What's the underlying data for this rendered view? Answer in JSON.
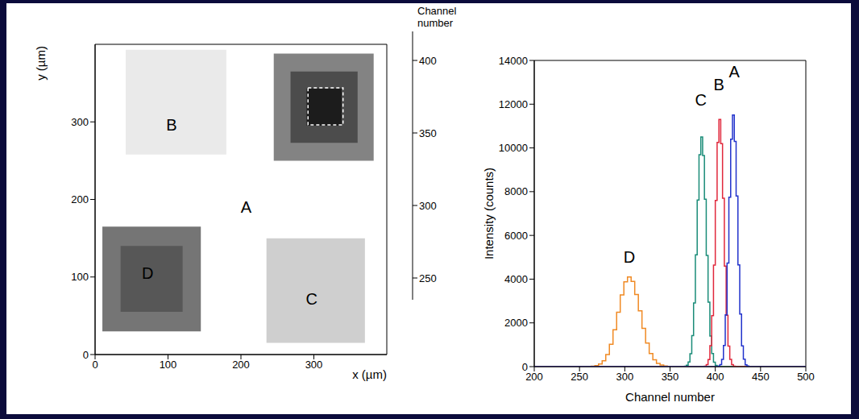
{
  "chart_data": [
    {
      "type": "heatmap",
      "xlabel": "x (µm)",
      "ylabel": "y (µm)",
      "xlim": [
        0,
        400
      ],
      "ylim": [
        0,
        400
      ],
      "xticks": [
        0,
        100,
        200,
        300
      ],
      "yticks": [
        0,
        100,
        200,
        300
      ],
      "cells": [
        {
          "x": [
            0,
            400
          ],
          "y": [
            0,
            400
          ],
          "value": 420
        },
        {
          "x": [
            42,
            180
          ],
          "y": [
            258,
            393
          ],
          "value": 405
        },
        {
          "x": [
            245,
            382
          ],
          "y": [
            250,
            388
          ],
          "value": 330
        },
        {
          "x": [
            268,
            360
          ],
          "y": [
            273,
            365
          ],
          "value": 290
        },
        {
          "x": [
            290,
            338
          ],
          "y": [
            295,
            343
          ],
          "value": 255
        },
        {
          "x": [
            10,
            145
          ],
          "y": [
            30,
            165
          ],
          "value": 320
        },
        {
          "x": [
            35,
            120
          ],
          "y": [
            55,
            140
          ],
          "value": 298
        },
        {
          "x": [
            235,
            370
          ],
          "y": [
            15,
            150
          ],
          "value": 385
        }
      ],
      "highlight": {
        "x": [
          292,
          340
        ],
        "y": [
          296,
          344
        ],
        "line_style": "dashed"
      },
      "annotations": [
        {
          "text": "A",
          "x": 207,
          "y": 190
        },
        {
          "text": "B",
          "x": 105,
          "y": 296
        },
        {
          "text": "C",
          "x": 297,
          "y": 72
        },
        {
          "text": "D",
          "x": 72,
          "y": 105
        }
      ],
      "colorbar": {
        "label": "Channel number",
        "range": [
          235,
          420
        ],
        "ticks": [
          250,
          300,
          350,
          400
        ]
      }
    },
    {
      "type": "line",
      "xlabel": "Channel number",
      "ylabel": "Intensity (counts)",
      "xlim": [
        200,
        500
      ],
      "ylim": [
        0,
        14000
      ],
      "xticks": [
        200,
        250,
        300,
        350,
        400,
        450,
        500
      ],
      "yticks": [
        0,
        2000,
        4000,
        6000,
        8000,
        10000,
        12000,
        14000
      ],
      "grid": false,
      "line_style": "step",
      "series": [
        {
          "name": "D",
          "color": "#f08a24",
          "label_xy": [
            305,
            5000
          ],
          "x": [
            200,
            261,
            265,
            269,
            273,
            277,
            281,
            285,
            289,
            293,
            297,
            301,
            305,
            309,
            313,
            317,
            321,
            325,
            329,
            333,
            337,
            341,
            345,
            349,
            353,
            500
          ],
          "values": [
            0,
            0,
            16,
            45,
            120,
            270,
            550,
            1020,
            1690,
            2490,
            3280,
            3880,
            4100,
            3900,
            3300,
            2550,
            1750,
            1080,
            600,
            310,
            150,
            70,
            30,
            10,
            0,
            0
          ]
        },
        {
          "name": "C",
          "color": "#1a8c78",
          "label_xy": [
            384,
            12200
          ],
          "x": [
            200,
            365,
            367,
            369,
            371,
            373,
            375,
            377,
            379,
            381,
            383,
            385,
            387,
            389,
            391,
            393,
            395,
            397,
            399,
            401,
            403,
            405,
            500
          ],
          "values": [
            0,
            0,
            15,
            60,
            210,
            590,
            1420,
            2910,
            5110,
            7620,
            9690,
            10500,
            9650,
            7650,
            5080,
            2950,
            1400,
            600,
            200,
            55,
            15,
            0,
            0
          ]
        },
        {
          "name": "B",
          "color": "#e0283c",
          "label_xy": [
            404,
            12900
          ],
          "x": [
            200,
            387,
            389,
            391,
            393,
            395,
            397,
            399,
            401,
            403,
            405,
            407,
            409,
            411,
            413,
            415,
            417,
            419,
            421,
            423,
            500
          ],
          "values": [
            0,
            0,
            20,
            90,
            320,
            960,
            2330,
            4640,
            7600,
            10250,
            11300,
            10200,
            7700,
            4600,
            2350,
            940,
            330,
            90,
            20,
            0,
            0
          ]
        },
        {
          "name": "A",
          "color": "#2233cc",
          "label_xy": [
            421,
            13500
          ],
          "x": [
            200,
            402,
            404,
            406,
            408,
            410,
            412,
            414,
            416,
            418,
            420,
            422,
            424,
            426,
            428,
            430,
            432,
            434,
            436,
            438,
            500
          ],
          "values": [
            0,
            0,
            20,
            90,
            330,
            970,
            2370,
            4730,
            7750,
            10400,
            11500,
            10300,
            7800,
            4650,
            2400,
            950,
            340,
            85,
            25,
            0,
            0
          ]
        }
      ]
    }
  ]
}
